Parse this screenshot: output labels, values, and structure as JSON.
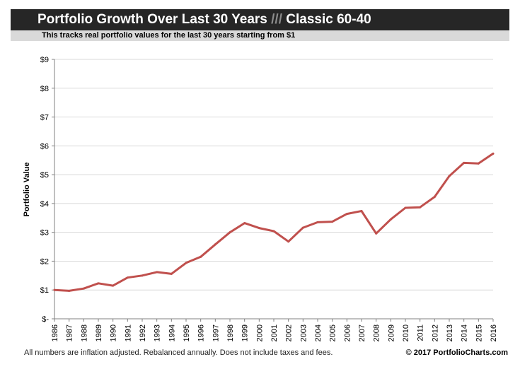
{
  "header": {
    "title_main": "Portfolio Growth Over Last 30 Years",
    "title_sep": "///",
    "title_portfolio": "Classic 60-40",
    "subtitle": "This tracks real portfolio values for the last 30 years starting from $1"
  },
  "footer": {
    "note": "All numbers are inflation adjusted.  Rebalanced annually.  Does not include taxes and fees.",
    "copyright": "© 2017 PortfolioCharts.com"
  },
  "colors": {
    "line": "#c0504d",
    "grid": "#d9d9d9",
    "title_bg": "#262626",
    "subtitle_bg": "#d9d9d9"
  },
  "chart_data": {
    "type": "line",
    "ylabel": "Portfolio Value",
    "xlabel": "",
    "ylim": [
      0,
      9
    ],
    "yticks": [
      "$-",
      "$1",
      "$2",
      "$3",
      "$4",
      "$5",
      "$6",
      "$7",
      "$8",
      "$9"
    ],
    "grid": true,
    "x": [
      "1986",
      "1987",
      "1988",
      "1989",
      "1990",
      "1991",
      "1992",
      "1993",
      "1994",
      "1995",
      "1996",
      "1997",
      "1998",
      "1999",
      "2000",
      "2001",
      "2002",
      "2003",
      "2004",
      "2005",
      "2006",
      "2007",
      "2008",
      "2009",
      "2010",
      "2011",
      "2012",
      "2013",
      "2014",
      "2015",
      "2016"
    ],
    "series": [
      {
        "values": [
          1.0,
          0.97,
          1.05,
          1.23,
          1.15,
          1.43,
          1.5,
          1.62,
          1.56,
          1.94,
          2.15,
          2.58,
          3.0,
          3.32,
          3.15,
          3.04,
          2.68,
          3.16,
          3.35,
          3.37,
          3.64,
          3.74,
          2.96,
          3.45,
          3.85,
          3.87,
          4.23,
          4.95,
          5.41,
          5.39,
          5.73
        ]
      }
    ]
  }
}
